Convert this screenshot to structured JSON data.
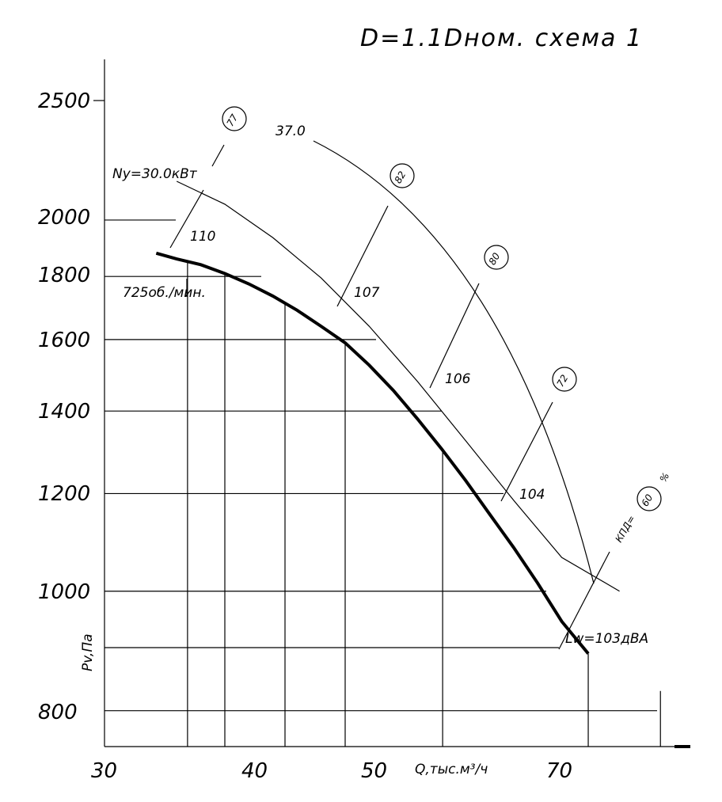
{
  "chart_data": {
    "type": "line",
    "title": "D=1.1Dном. схема 1",
    "xlabel": "Q,тыс.м³/ч",
    "ylabel": "Pv,Па",
    "x_ticks": [
      "30",
      "40",
      "50",
      "70"
    ],
    "y_ticks": [
      "2500",
      "2000",
      "1800",
      "1600",
      "1400",
      "1200",
      "1000",
      "800"
    ],
    "xlim": [
      30,
      80
    ],
    "ylim": [
      760,
      2600
    ],
    "y_scale": "log",
    "grid": true,
    "series": [
      {
        "name": "725об./мин.",
        "x": [
          34.3,
          36,
          38,
          40,
          42,
          44,
          46,
          48,
          50,
          52,
          54,
          56,
          58,
          60,
          62,
          64,
          66,
          68,
          70.2
        ],
        "y": [
          1880,
          1860,
          1840,
          1810,
          1775,
          1735,
          1690,
          1640,
          1590,
          1525,
          1455,
          1380,
          1305,
          1230,
          1155,
          1085,
          1015,
          945,
          890
        ]
      }
    ],
    "power_line": {
      "label": "Ny=30.0кВт",
      "end_label": "37.0",
      "x": [
        36,
        40,
        44,
        48,
        52,
        56,
        60,
        64,
        68,
        72.8
      ],
      "y": [
        2150,
        2060,
        1935,
        1795,
        1640,
        1480,
        1325,
        1185,
        1065,
        1000
      ]
    },
    "noise_labels": [
      "110",
      "107",
      "106",
      "104",
      "Lw=103дВА"
    ],
    "efficiency_labels": [
      "77",
      "82",
      "80",
      "72",
      "60"
    ],
    "efficiency_prefix": "КПД=",
    "efficiency_unit": "%"
  }
}
